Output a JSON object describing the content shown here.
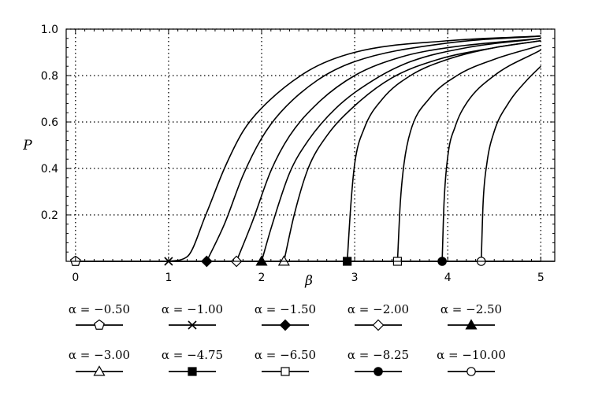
{
  "chart_data": {
    "type": "line",
    "title": "",
    "xlabel": "β",
    "ylabel": "P",
    "xlim": [
      -0.1,
      5.15
    ],
    "ylim": [
      0.0,
      1.0
    ],
    "x_ticks": [
      "0",
      "1",
      "2",
      "3",
      "4",
      "5"
    ],
    "y_ticks": [
      "0.2",
      "0.4",
      "0.6",
      "0.8",
      "1.0"
    ],
    "grid": true,
    "legend_placement": "below",
    "colors": {
      "line": "#000000",
      "grid": "#000000",
      "background": "#ffffff"
    },
    "series": [
      {
        "name": "α = −0.50",
        "onset": 0.0,
        "marker": "pentagon-open",
        "points": [
          [
            0.0,
            0.0
          ],
          [
            5.0,
            0.0
          ]
        ]
      },
      {
        "name": "α = −1.00",
        "onset": 1.0,
        "marker": "cross",
        "points": [
          [
            1.0,
            0.0
          ],
          [
            1.2,
            0.02
          ],
          [
            1.4,
            0.2
          ],
          [
            1.6,
            0.4
          ],
          [
            1.8,
            0.56
          ],
          [
            2.0,
            0.66
          ],
          [
            2.5,
            0.82
          ],
          [
            3.0,
            0.9
          ],
          [
            4.0,
            0.95
          ],
          [
            5.0,
            0.97
          ]
        ]
      },
      {
        "name": "α = −1.50",
        "onset": 1.41,
        "marker": "diamond-filled",
        "points": [
          [
            1.41,
            0.0
          ],
          [
            1.6,
            0.16
          ],
          [
            1.8,
            0.37
          ],
          [
            2.0,
            0.53
          ],
          [
            2.2,
            0.64
          ],
          [
            2.6,
            0.78
          ],
          [
            3.0,
            0.86
          ],
          [
            4.0,
            0.94
          ],
          [
            5.0,
            0.97
          ]
        ]
      },
      {
        "name": "α = −2.00",
        "onset": 1.73,
        "marker": "diamond-open",
        "points": [
          [
            1.73,
            0.0
          ],
          [
            1.9,
            0.17
          ],
          [
            2.1,
            0.39
          ],
          [
            2.3,
            0.54
          ],
          [
            2.6,
            0.68
          ],
          [
            3.0,
            0.8
          ],
          [
            3.5,
            0.88
          ],
          [
            4.0,
            0.92
          ],
          [
            5.0,
            0.96
          ]
        ]
      },
      {
        "name": "α = −2.50",
        "onset": 2.0,
        "marker": "triangle-filled",
        "points": [
          [
            2.0,
            0.0
          ],
          [
            2.1,
            0.14
          ],
          [
            2.3,
            0.38
          ],
          [
            2.5,
            0.52
          ],
          [
            2.8,
            0.66
          ],
          [
            3.2,
            0.78
          ],
          [
            3.6,
            0.86
          ],
          [
            4.2,
            0.92
          ],
          [
            5.0,
            0.96
          ]
        ]
      },
      {
        "name": "α = −3.00",
        "onset": 2.24,
        "marker": "triangle-open",
        "points": [
          [
            2.24,
            0.0
          ],
          [
            2.35,
            0.2
          ],
          [
            2.5,
            0.4
          ],
          [
            2.7,
            0.54
          ],
          [
            3.0,
            0.67
          ],
          [
            3.4,
            0.79
          ],
          [
            3.9,
            0.87
          ],
          [
            4.5,
            0.92
          ],
          [
            5.0,
            0.95
          ]
        ]
      },
      {
        "name": "α = −4.75",
        "onset": 2.92,
        "marker": "square-filled",
        "points": [
          [
            2.92,
            0.0
          ],
          [
            2.96,
            0.25
          ],
          [
            3.0,
            0.42
          ],
          [
            3.1,
            0.57
          ],
          [
            3.3,
            0.7
          ],
          [
            3.6,
            0.8
          ],
          [
            4.0,
            0.87
          ],
          [
            4.5,
            0.92
          ],
          [
            5.0,
            0.95
          ]
        ]
      },
      {
        "name": "α = −6.50",
        "onset": 3.46,
        "marker": "square-open",
        "points": [
          [
            3.46,
            0.0
          ],
          [
            3.49,
            0.25
          ],
          [
            3.53,
            0.42
          ],
          [
            3.6,
            0.56
          ],
          [
            3.8,
            0.7
          ],
          [
            4.1,
            0.8
          ],
          [
            4.5,
            0.87
          ],
          [
            5.0,
            0.93
          ]
        ]
      },
      {
        "name": "α = −8.25",
        "onset": 3.94,
        "marker": "circle-filled",
        "points": [
          [
            3.94,
            0.0
          ],
          [
            3.96,
            0.25
          ],
          [
            4.0,
            0.45
          ],
          [
            4.08,
            0.58
          ],
          [
            4.2,
            0.68
          ],
          [
            4.5,
            0.8
          ],
          [
            5.0,
            0.91
          ]
        ]
      },
      {
        "name": "α = −10.00",
        "onset": 4.36,
        "marker": "circle-open",
        "points": [
          [
            4.36,
            0.0
          ],
          [
            4.38,
            0.25
          ],
          [
            4.42,
            0.42
          ],
          [
            4.5,
            0.56
          ],
          [
            4.65,
            0.68
          ],
          [
            4.85,
            0.78
          ],
          [
            5.0,
            0.84
          ]
        ]
      }
    ]
  }
}
